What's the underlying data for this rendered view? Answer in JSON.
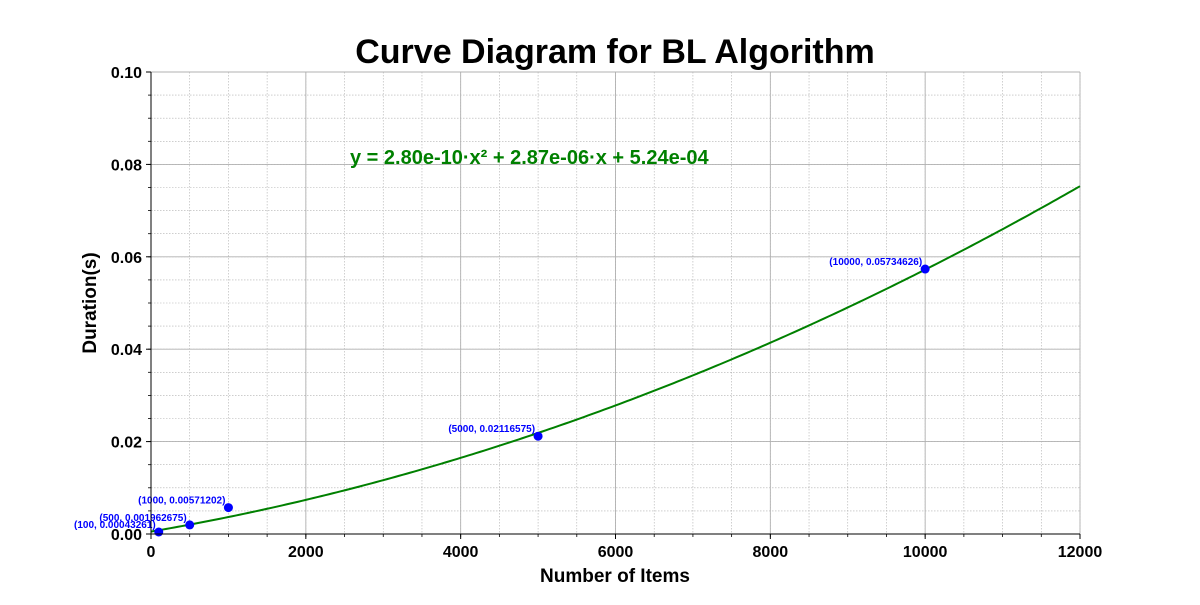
{
  "chart_data": {
    "type": "scatter",
    "title": "Curve Diagram for BL Algorithm",
    "xlabel": "Number of Items",
    "ylabel": "Duration(s)",
    "xlim": [
      0,
      12000
    ],
    "ylim": [
      0,
      0.1
    ],
    "xticks": [
      0,
      2000,
      4000,
      6000,
      8000,
      10000,
      12000
    ],
    "xtick_labels": [
      "0",
      "2000",
      "4000",
      "6000",
      "8000",
      "10000",
      "12000"
    ],
    "yticks": [
      0,
      0.02,
      0.04,
      0.06,
      0.08,
      0.1
    ],
    "ytick_labels": [
      "0.00",
      "0.02",
      "0.04",
      "0.06",
      "0.08",
      "0.10"
    ],
    "grid": true,
    "points": [
      {
        "x": 100,
        "y": 0.0004326,
        "label": "(100, 0.00043261)"
      },
      {
        "x": 500,
        "y": 0.001962675,
        "label": "(500, 0.001962675)"
      },
      {
        "x": 1000,
        "y": 0.00571202,
        "label": "(1000, 0.00571202)"
      },
      {
        "x": 5000,
        "y": 0.02116575,
        "label": "(5000, 0.02116575)"
      },
      {
        "x": 10000,
        "y": 0.05734626,
        "label": "(10000, 0.05734626)"
      }
    ],
    "fit": {
      "type": "quadratic",
      "coefficients": [
        2.8e-10,
        2.87e-06,
        0.000524
      ],
      "equation_label": "y = 2.80e-10·x² + 2.87e-06·x + 5.24e-04"
    },
    "colors": {
      "points": "#0000ff",
      "fit": "#008000",
      "equation": "#008000",
      "grid_major": "#b0b0b0",
      "grid_minor": "#b0b0b0"
    }
  }
}
